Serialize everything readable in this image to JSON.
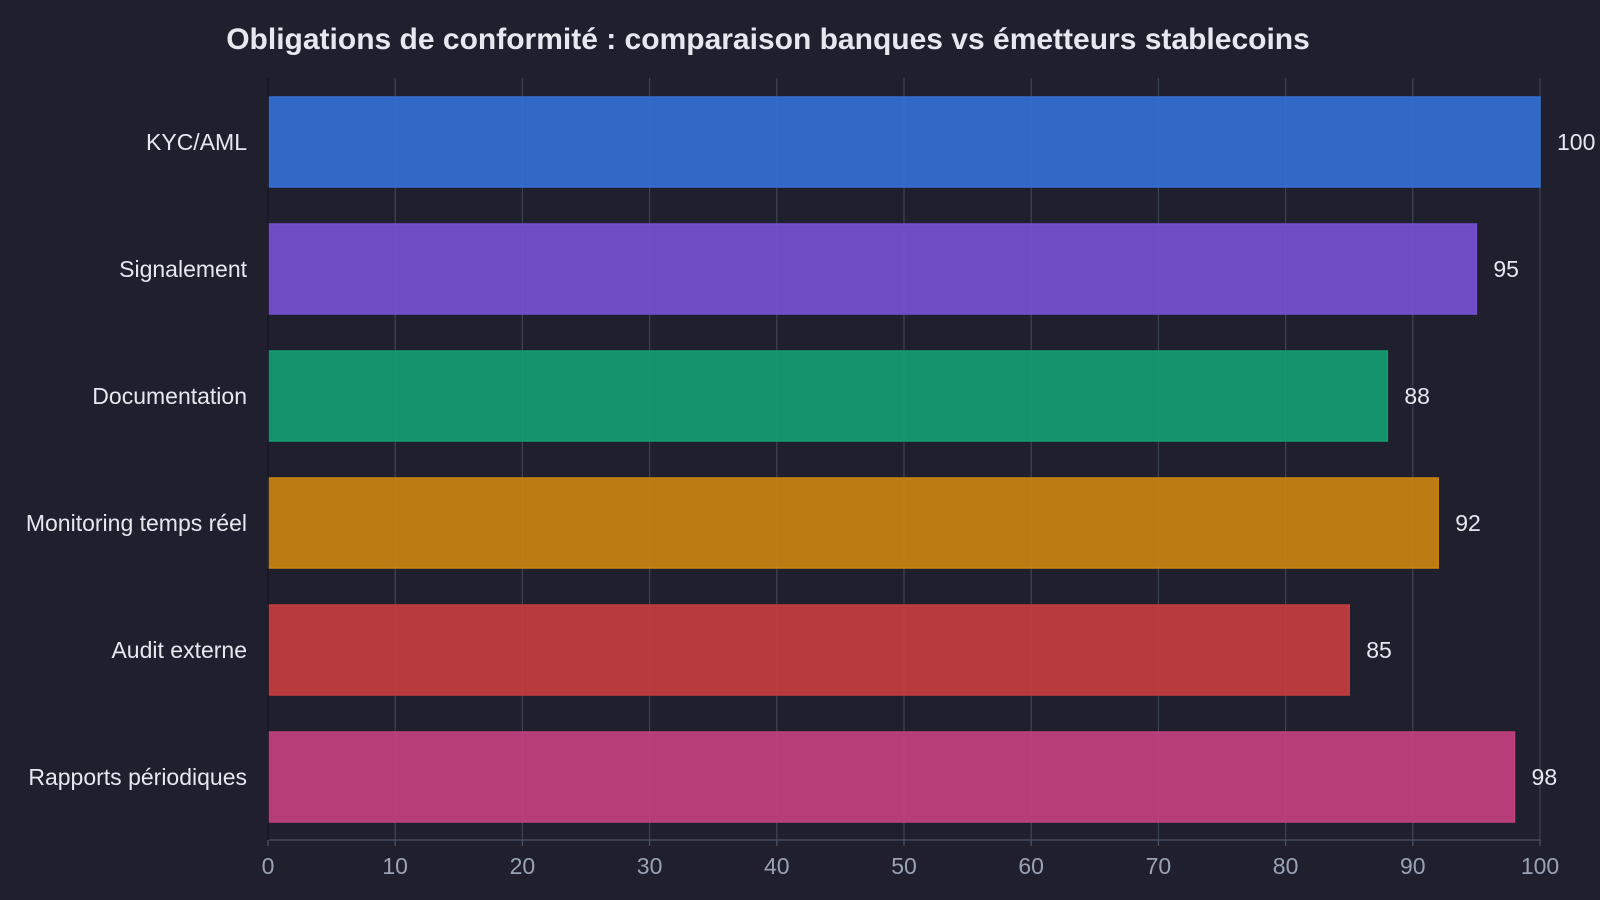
{
  "chart_data": {
    "type": "bar",
    "orientation": "horizontal",
    "title": "Obligations de conformité : comparaison banques vs émetteurs stablecoins",
    "xlabel": "",
    "ylabel": "",
    "categories": [
      "KYC/AML",
      "Signalement",
      "Documentation",
      "Monitoring temps réel",
      "Audit externe",
      "Rapports périodiques"
    ],
    "values": [
      100,
      95,
      88,
      92,
      85,
      98
    ],
    "colors": [
      "#356fd4",
      "#7650d0",
      "#149c72",
      "#ca8412",
      "#c53d3f",
      "#c2417f"
    ],
    "xlim": [
      0,
      100
    ],
    "xticks": [
      "0",
      "10",
      "20",
      "30",
      "40",
      "50",
      "60",
      "70",
      "80",
      "90",
      "100"
    ],
    "grid": true,
    "legend": "none"
  },
  "style": {
    "background": "#1f1f2e",
    "grid_color": "#3a4456",
    "axis_color": "#4a5568",
    "text_color": "#e6e8ef",
    "tick_color": "#9aa3b5"
  }
}
